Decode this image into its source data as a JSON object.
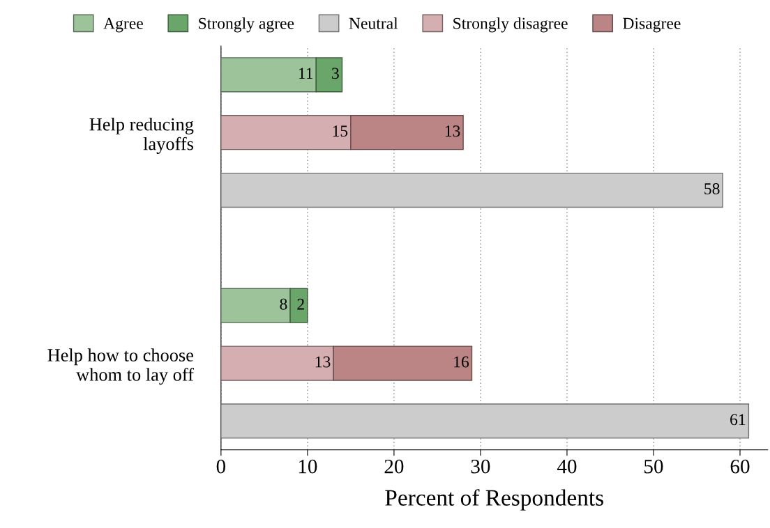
{
  "chart_data": {
    "type": "bar",
    "orientation": "horizontal",
    "stacked": true,
    "categories": [
      null,
      "Help reducing layoffs",
      null,
      null,
      null,
      "Help how to choose whom to lay off",
      null
    ],
    "series": [
      {
        "name": "Agree",
        "color": "#9dc39a",
        "values": [
          11,
          null,
          null,
          null,
          8,
          null,
          null
        ]
      },
      {
        "name": "Strongly agree",
        "color": "#6aa56a",
        "values": [
          3,
          null,
          null,
          null,
          2,
          null,
          null
        ]
      },
      {
        "name": "Neutral",
        "color": "#cccccc",
        "values": [
          null,
          null,
          58,
          null,
          null,
          null,
          61
        ]
      },
      {
        "name": "Strongly disagree",
        "color": "#d4aeb1",
        "values": [
          null,
          15,
          null,
          null,
          null,
          13,
          null
        ]
      },
      {
        "name": "Disagree",
        "color": "#bc8585",
        "values": [
          null,
          13,
          null,
          null,
          null,
          16,
          null
        ]
      }
    ],
    "xlabel": "Percent of Respondents",
    "xlim": [
      0,
      63.2
    ],
    "xticks": [
      0,
      10,
      20,
      30,
      40,
      50,
      60
    ],
    "grid": "x",
    "legend": "top",
    "data_labels": true
  }
}
